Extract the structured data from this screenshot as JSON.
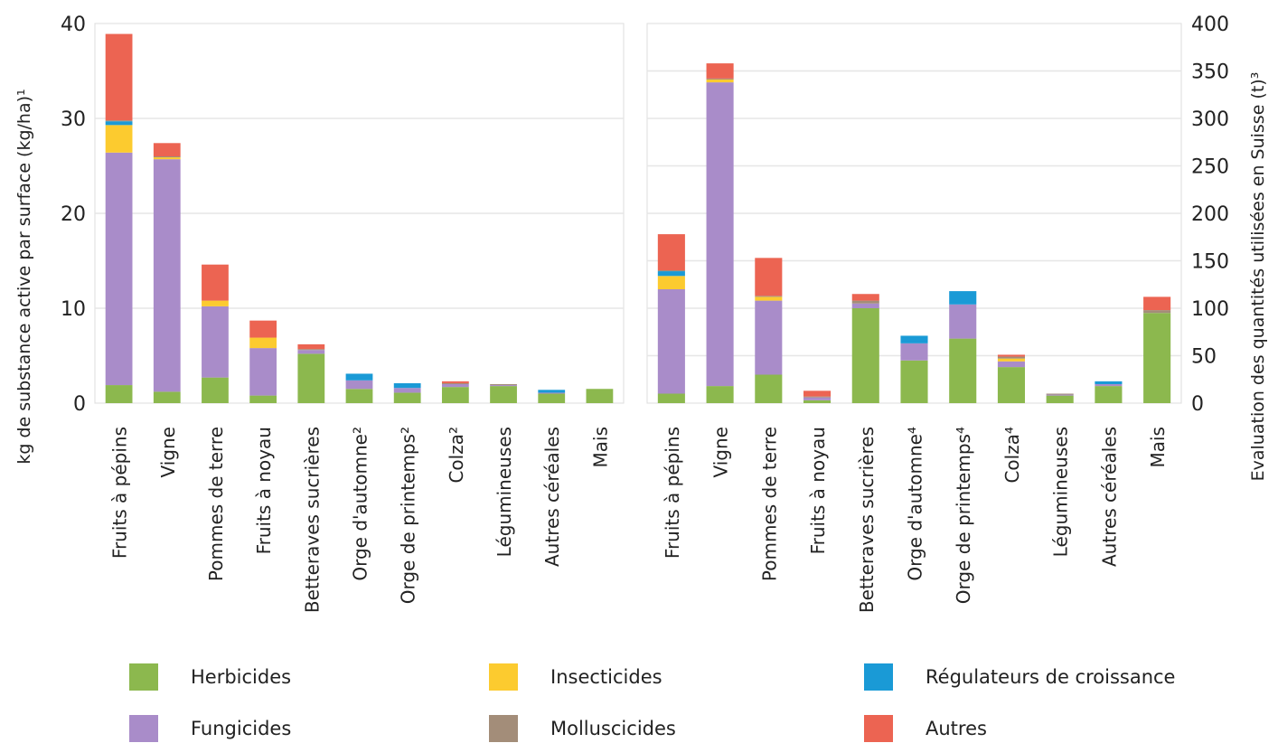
{
  "chart_data": [
    {
      "type": "bar",
      "stacked": true,
      "ylabel": "kg de substance active par surface (kg/ha)¹",
      "ylim": [
        0,
        40
      ],
      "yticks": [
        0,
        10,
        20,
        30,
        40
      ],
      "grid": true,
      "categories": [
        "Fruits à pépins",
        "Vigne",
        "Pommes de terre",
        "Fruits à noyau",
        "Betteraves sucrières",
        "Orge d'automne²",
        "Orge de printemps²",
        "Colza²",
        "Légumineuses",
        "Autres céréales",
        "Mais"
      ],
      "series": [
        {
          "name": "Herbicides",
          "values": [
            1.9,
            1.2,
            2.7,
            0.8,
            5.2,
            1.5,
            1.1,
            1.7,
            1.8,
            1.0,
            1.5
          ]
        },
        {
          "name": "Fungicides",
          "values": [
            24.5,
            24.5,
            7.5,
            5.0,
            0.4,
            0.9,
            0.5,
            0.3,
            0.1,
            0.1,
            0
          ]
        },
        {
          "name": "Insecticides",
          "values": [
            2.9,
            0.2,
            0.6,
            1.1,
            0,
            0,
            0,
            0,
            0,
            0,
            0
          ]
        },
        {
          "name": "Régulateurs de croissance",
          "values": [
            0.4,
            0,
            0,
            0,
            0,
            0.7,
            0.5,
            0,
            0,
            0.3,
            0
          ]
        },
        {
          "name": "Molluscicides",
          "values": [
            0.1,
            0.1,
            0,
            0,
            0.1,
            0,
            0,
            0.1,
            0.1,
            0,
            0
          ]
        },
        {
          "name": "Autres",
          "values": [
            9.1,
            1.4,
            3.8,
            1.8,
            0.5,
            0,
            0,
            0.2,
            0,
            0,
            0
          ]
        }
      ]
    },
    {
      "type": "bar",
      "stacked": true,
      "ylabel": "Evaluation des quantités utilisées en Suisse (t)³",
      "ylim": [
        0,
        400
      ],
      "yticks": [
        0,
        50,
        100,
        150,
        200,
        250,
        300,
        350,
        400
      ],
      "grid": true,
      "categories": [
        "Fruits à pépins",
        "Vigne",
        "Pommes de terre",
        "Fruits à noyau",
        "Betteraves sucrières",
        "Orge d'automne⁴",
        "Orge de printemps⁴",
        "Colza⁴",
        "Légumineuses",
        "Autres céréales",
        "Mais"
      ],
      "series": [
        {
          "name": "Herbicides",
          "values": [
            10,
            18,
            30,
            3,
            100,
            45,
            68,
            38,
            8,
            18,
            95
          ]
        },
        {
          "name": "Fungicides",
          "values": [
            110,
            320,
            78,
            3,
            5,
            18,
            36,
            6,
            1,
            2,
            0
          ]
        },
        {
          "name": "Insecticides",
          "values": [
            14,
            3,
            4,
            0,
            0,
            0,
            0,
            3,
            0,
            0,
            0
          ]
        },
        {
          "name": "Régulateurs de croissance",
          "values": [
            5,
            0,
            0,
            0,
            0,
            8,
            14,
            0,
            0,
            3,
            0
          ]
        },
        {
          "name": "Molluscicides",
          "values": [
            1,
            1,
            1,
            1,
            3,
            0,
            0,
            2,
            1,
            0,
            3
          ]
        },
        {
          "name": "Autres",
          "values": [
            38,
            16,
            40,
            6,
            7,
            0,
            0,
            2,
            0,
            0,
            14
          ]
        }
      ]
    }
  ],
  "legend": {
    "placement": "bottom",
    "items": [
      {
        "label": "Herbicides",
        "color": "#8cb84e"
      },
      {
        "label": "Insecticides",
        "color": "#fccb2f"
      },
      {
        "label": "Régulateurs de croissance",
        "color": "#1a9ad6"
      },
      {
        "label": "Fungicides",
        "color": "#a98cc9"
      },
      {
        "label": "Molluscicides",
        "color": "#a38d79"
      },
      {
        "label": "Autres",
        "color": "#ec6452"
      }
    ]
  },
  "colors": {
    "Herbicides": "#8cb84e",
    "Fungicides": "#a98cc9",
    "Insecticides": "#fccb2f",
    "Régulateurs de croissance": "#1a9ad6",
    "Molluscicides": "#a38d79",
    "Autres": "#ec6452",
    "grid": "#e6e6e6",
    "frame": "#dddddd"
  }
}
